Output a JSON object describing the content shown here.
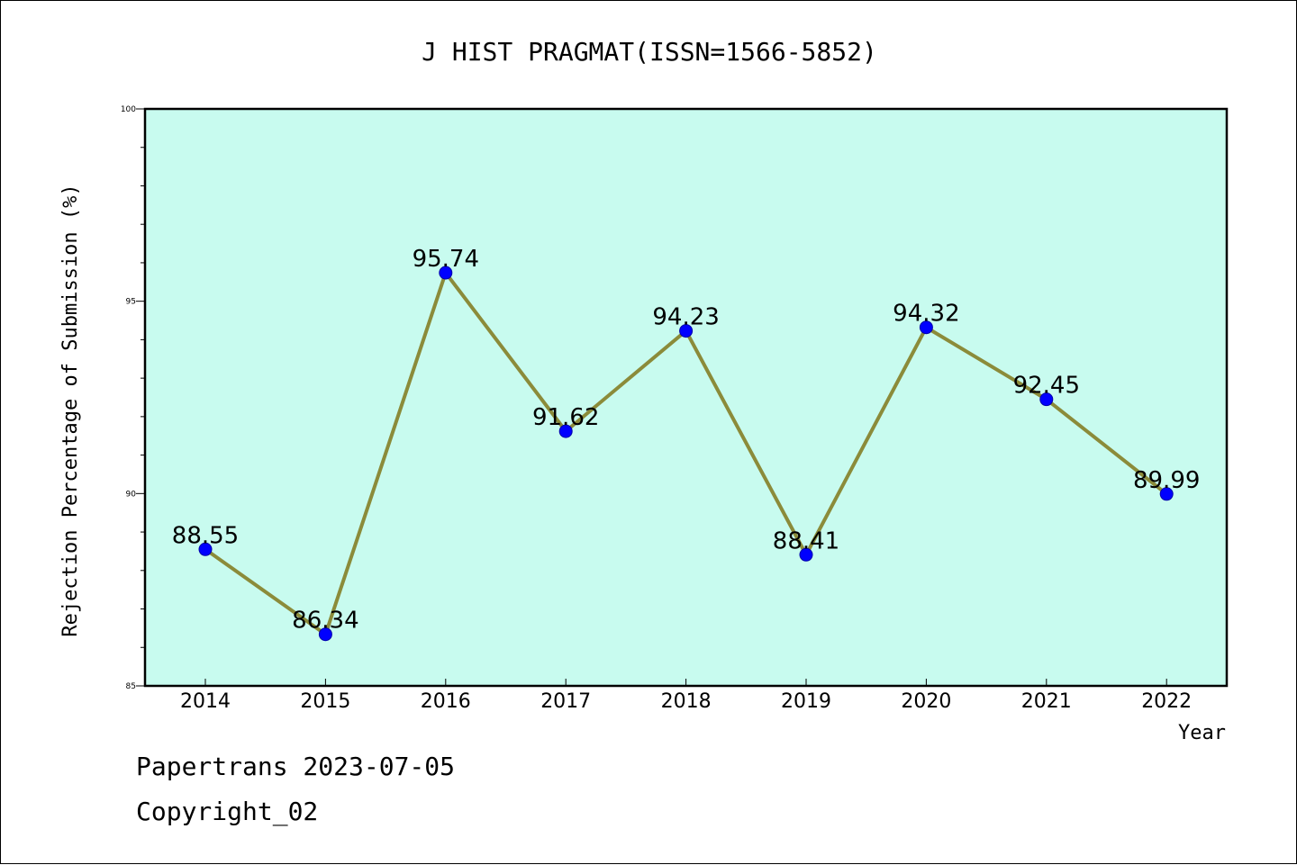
{
  "footer": {
    "line1": "Papertrans 2023-07-05",
    "line2": "Copyright_02"
  },
  "chart_data": {
    "type": "line",
    "title": "J HIST PRAGMAT(ISSN=1566-5852)",
    "xlabel": "Year",
    "ylabel": "Rejection Percentage of Submission (%)",
    "categories": [
      "2014",
      "2015",
      "2016",
      "2017",
      "2018",
      "2019",
      "2020",
      "2021",
      "2022"
    ],
    "series": [
      {
        "values": [
          88.55,
          86.34,
          95.74,
          91.62,
          94.23,
          88.41,
          94.32,
          92.45,
          89.99
        ],
        "labels": [
          "88.55",
          "86.34",
          "95.74",
          "91.62",
          "94.23",
          "88.41",
          "94.32",
          "92.45",
          "89.99"
        ]
      }
    ],
    "ylim": [
      85,
      100
    ],
    "yticks": [
      "85",
      "90",
      "95",
      "100"
    ],
    "grid": false,
    "colors": {
      "background": "#c8fbef",
      "line": "#8b8b3a",
      "marker": "#0000ff"
    }
  }
}
